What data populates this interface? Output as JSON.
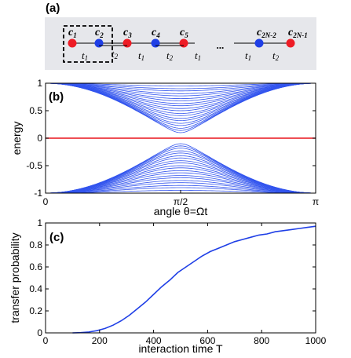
{
  "colors": {
    "panel_a_bg": "#e6e7eb",
    "site_odd": "#ee1c25",
    "site_even": "#1f3fe6",
    "energy_curves": "#3355ee",
    "zero_mode": "#e8141c",
    "probability_curve": "#1f3fe6"
  },
  "panel_a": {
    "label": "(a)",
    "sites": [
      {
        "name": "c",
        "sub": "1",
        "color": "odd"
      },
      {
        "name": "c",
        "sub": "2",
        "color": "even"
      },
      {
        "name": "c",
        "sub": "3",
        "color": "odd"
      },
      {
        "name": "c",
        "sub": "4",
        "color": "even"
      },
      {
        "name": "c",
        "sub": "5",
        "color": "odd"
      },
      {
        "name": "c",
        "sub": "2N-2",
        "color": "even"
      },
      {
        "name": "c",
        "sub": "2N-1",
        "color": "odd"
      }
    ],
    "bonds": [
      {
        "name": "t",
        "sub": "1"
      },
      {
        "name": "t",
        "sub": "2"
      },
      {
        "name": "t",
        "sub": "1"
      },
      {
        "name": "t",
        "sub": "2"
      },
      {
        "name": "t",
        "sub": "1"
      },
      {
        "name": "t",
        "sub": "1"
      },
      {
        "name": "t",
        "sub": "2"
      }
    ],
    "ellipsis": "..."
  },
  "chart_data": [
    {
      "panel": "(b)",
      "type": "line",
      "ylabel": "energy",
      "xlabel": "angle θ=Ωt",
      "xlim": [
        0,
        3.14159
      ],
      "ylim": [
        -1,
        1
      ],
      "xticks": [
        "0",
        "π/2",
        "π"
      ],
      "yticks": [
        "1",
        "0.5",
        "0",
        "-0.5",
        "-1"
      ],
      "n_bands": 20,
      "band_minimum_at_center": [
        0.1,
        0.14,
        0.18,
        0.23,
        0.27,
        0.32,
        0.36,
        0.41,
        0.45,
        0.5,
        0.54,
        0.59,
        0.63,
        0.68,
        0.72,
        0.77,
        0.81,
        0.86,
        0.9,
        0.95
      ],
      "zero_mode_energy": 0,
      "symmetric_about_zero": true
    },
    {
      "panel": "(c)",
      "type": "line",
      "ylabel": "transfer probability",
      "xlabel": "interaction time T",
      "xlim": [
        0,
        1000
      ],
      "ylim": [
        0,
        1
      ],
      "xticks": [
        "0",
        "200",
        "400",
        "600",
        "800",
        "1000"
      ],
      "yticks": [
        "0",
        "0.2",
        "0.4",
        "0.6",
        "0.8",
        "1"
      ],
      "x": [
        100,
        130,
        160,
        190,
        220,
        250,
        280,
        310,
        340,
        370,
        400,
        430,
        460,
        490,
        520,
        550,
        580,
        610,
        640,
        670,
        700,
        730,
        760,
        790,
        820,
        850,
        880,
        910,
        940,
        970,
        1000
      ],
      "y": [
        0.0,
        0.002,
        0.008,
        0.02,
        0.04,
        0.07,
        0.11,
        0.16,
        0.22,
        0.28,
        0.35,
        0.42,
        0.48,
        0.55,
        0.6,
        0.65,
        0.7,
        0.74,
        0.77,
        0.8,
        0.83,
        0.85,
        0.87,
        0.89,
        0.9,
        0.92,
        0.93,
        0.94,
        0.95,
        0.96,
        0.97
      ]
    }
  ]
}
